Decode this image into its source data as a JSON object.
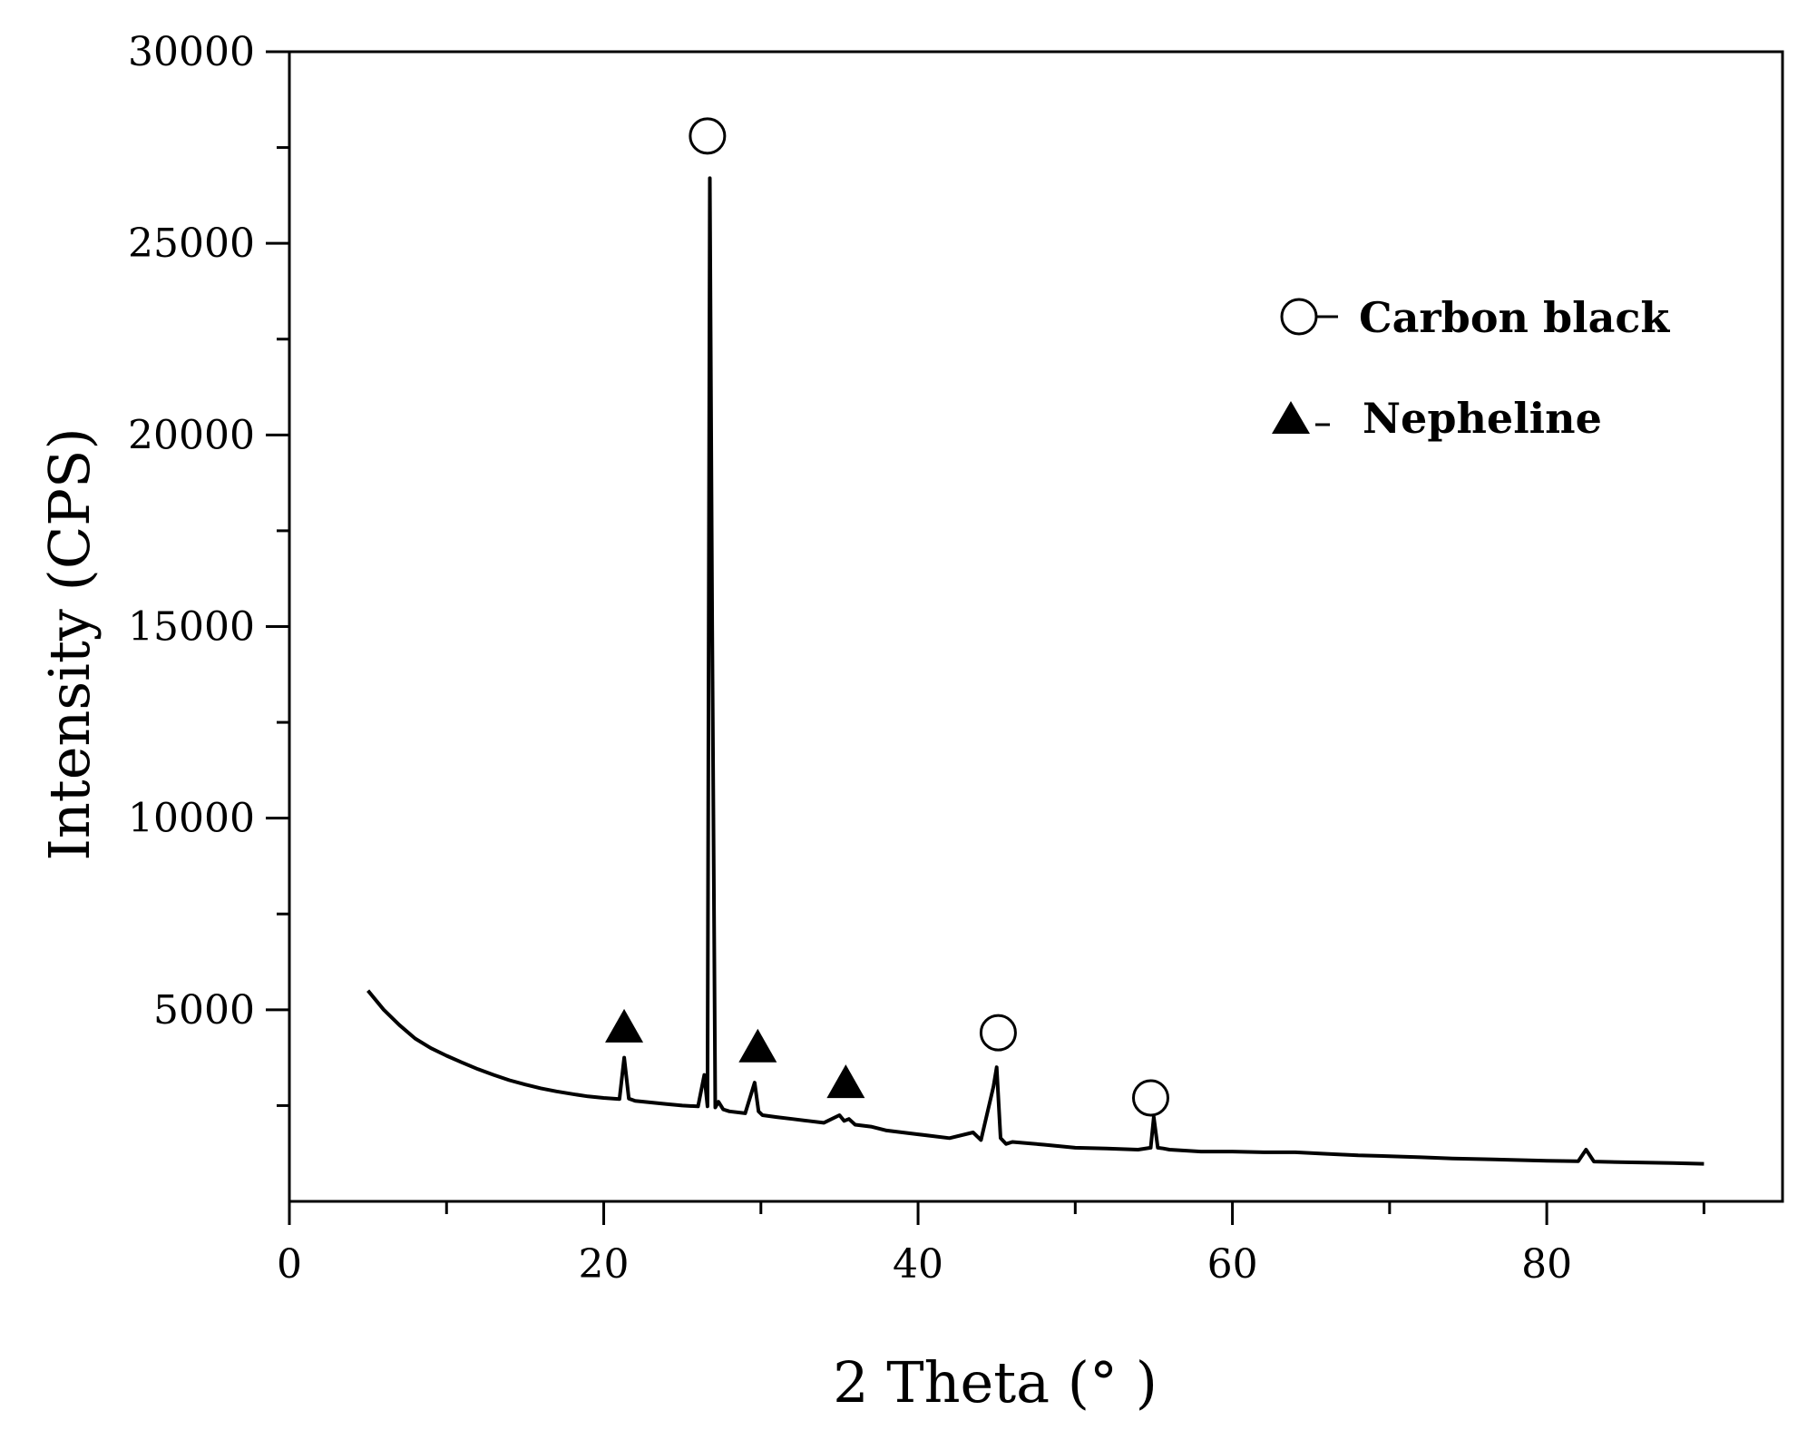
{
  "chart_data": {
    "type": "line",
    "title": "",
    "xlabel": "2 Theta (°  )",
    "ylabel": "Intensity (CPS)",
    "xlim": [
      0,
      95
    ],
    "ylim": [
      0,
      30000
    ],
    "x_ticks": [
      0,
      20,
      40,
      60,
      80
    ],
    "x_minor_ticks": [
      10,
      30,
      50,
      70,
      90
    ],
    "y_ticks": [
      5000,
      10000,
      15000,
      20000,
      25000,
      30000
    ],
    "y_minor_ticks": [
      2500,
      7500,
      12500,
      17500,
      22500,
      27500
    ],
    "grid": false,
    "legend_position": "top-right",
    "legend": [
      {
        "marker": "open-circle",
        "label": "Carbon black"
      },
      {
        "marker": "filled-triangle",
        "label": "Nepheline"
      }
    ],
    "series": [
      {
        "x": [
          5,
          6,
          7,
          8,
          9,
          10,
          11,
          12,
          13,
          14,
          15,
          16,
          17,
          18,
          19,
          20,
          21,
          21.3,
          21.6,
          22,
          23,
          24,
          25,
          26,
          26.4,
          26.6,
          26.75,
          26.9,
          27.1,
          27.3,
          27.6,
          28,
          29,
          29.6,
          29.85,
          30.1,
          31,
          32,
          33,
          34,
          35,
          35.3,
          35.6,
          36,
          37,
          38,
          40,
          42,
          43.5,
          44,
          44.8,
          45,
          45.25,
          45.6,
          46,
          48,
          50,
          52,
          54,
          54.8,
          55,
          55.25,
          55.6,
          56,
          58,
          60,
          62,
          64,
          66,
          68,
          70,
          72,
          74,
          76,
          78,
          80,
          82,
          82.5,
          83,
          85,
          88,
          90
        ],
        "y": [
          5500,
          5000,
          4600,
          4250,
          4000,
          3800,
          3620,
          3450,
          3300,
          3160,
          3050,
          2950,
          2870,
          2800,
          2740,
          2700,
          2670,
          3750,
          2680,
          2620,
          2580,
          2540,
          2500,
          2480,
          3300,
          2480,
          26700,
          15000,
          2450,
          2600,
          2400,
          2350,
          2300,
          3100,
          2350,
          2250,
          2200,
          2150,
          2100,
          2050,
          2250,
          2100,
          2150,
          2000,
          1950,
          1850,
          1750,
          1650,
          1800,
          1600,
          3000,
          3500,
          1650,
          1500,
          1550,
          1480,
          1400,
          1380,
          1350,
          1400,
          2200,
          1400,
          1380,
          1350,
          1300,
          1300,
          1280,
          1280,
          1240,
          1200,
          1180,
          1150,
          1120,
          1100,
          1080,
          1060,
          1050,
          1350,
          1040,
          1020,
          1000,
          980
        ]
      }
    ],
    "peak_markers": [
      {
        "marker": "open-circle",
        "x": 26.6,
        "y": 27800
      },
      {
        "marker": "filled-triangle",
        "x": 21.3,
        "y": 4550
      },
      {
        "marker": "filled-triangle",
        "x": 29.8,
        "y": 4030
      },
      {
        "marker": "filled-triangle",
        "x": 35.4,
        "y": 3100
      },
      {
        "marker": "open-circle",
        "x": 45.1,
        "y": 4400
      },
      {
        "marker": "open-circle",
        "x": 54.8,
        "y": 2700
      }
    ]
  }
}
